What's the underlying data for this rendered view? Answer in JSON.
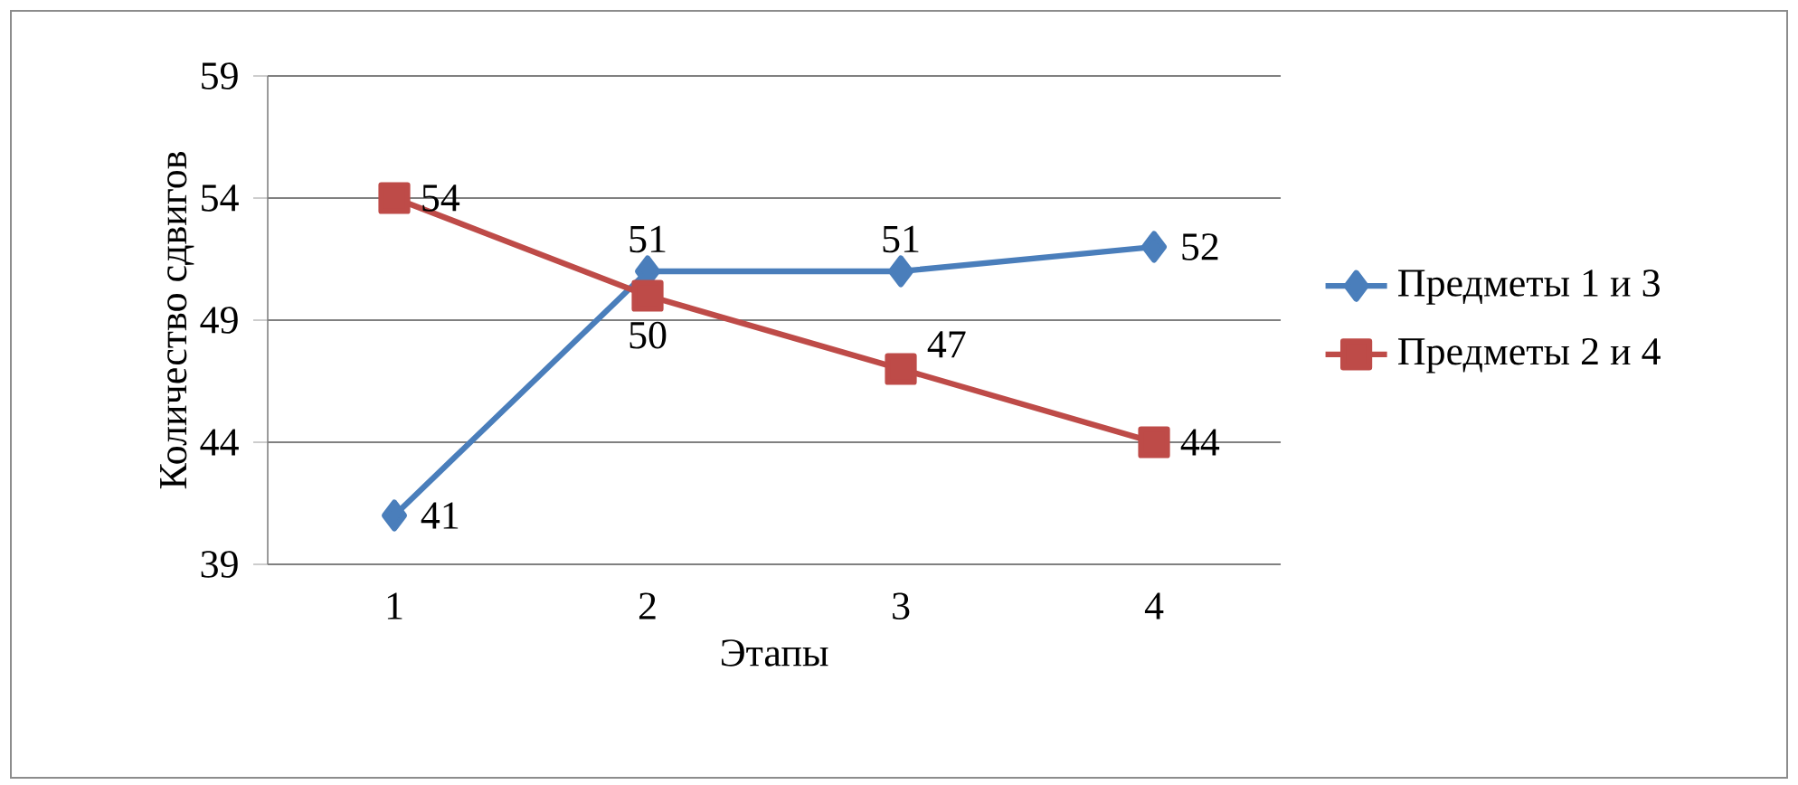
{
  "chart_data": {
    "type": "line",
    "xlabel": "Этапы",
    "ylabel": "Количество сдвигов",
    "categories": [
      "1",
      "2",
      "3",
      "4"
    ],
    "series": [
      {
        "name": "Предметы 1 и 3",
        "color": "#4a7ebb",
        "marker": "diamond",
        "values": [
          41,
          51,
          51,
          52
        ]
      },
      {
        "name": "Предметы 2 и 4",
        "color": "#be4b48",
        "marker": "square",
        "values": [
          54,
          50,
          47,
          44
        ]
      }
    ],
    "ylim": [
      39,
      59
    ],
    "yticks": [
      39,
      44,
      49,
      54,
      59
    ],
    "grid": "y",
    "legend": "right",
    "data_labels": true,
    "line_style": "solid"
  }
}
